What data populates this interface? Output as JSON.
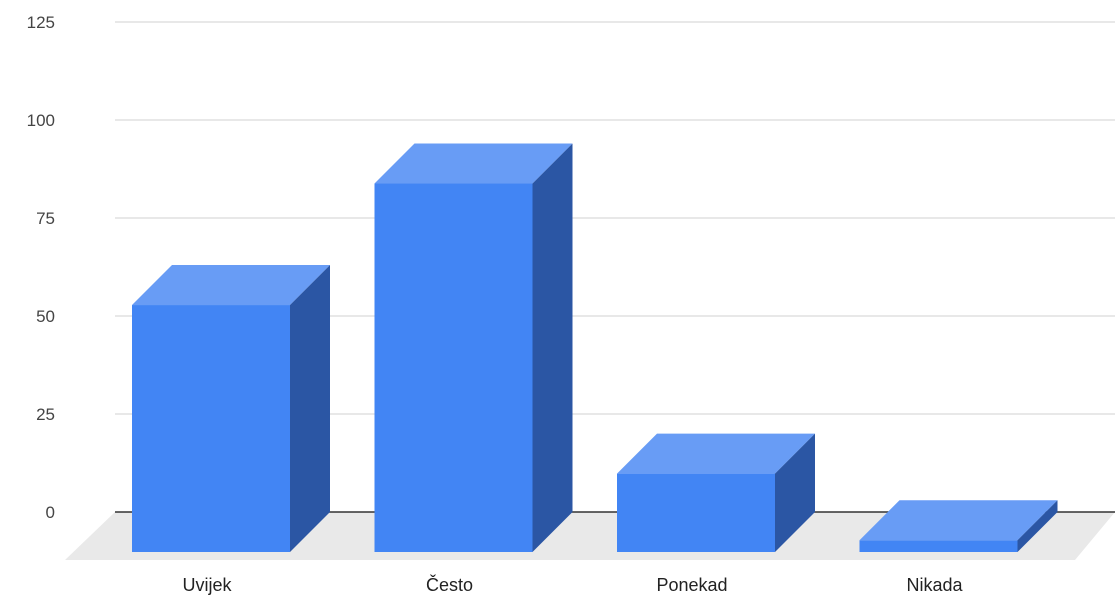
{
  "chart_data": {
    "type": "bar",
    "style": "3d",
    "categories": [
      "Uvijek",
      "Često",
      "Ponekad",
      "Nikada"
    ],
    "values": [
      63,
      94,
      20,
      3
    ],
    "y_ticks": [
      "0",
      "25",
      "50",
      "75",
      "100",
      "125"
    ],
    "ylim": [
      0,
      125
    ],
    "grid": true,
    "title": "",
    "xlabel": "",
    "ylabel": "",
    "colors": {
      "bar_front": "#4285f4",
      "bar_top": "#689cf5",
      "bar_side": "#2b56a4",
      "floor": "#e9e9e9",
      "grid": "#d0d0d0",
      "baseline": "#333333"
    }
  }
}
